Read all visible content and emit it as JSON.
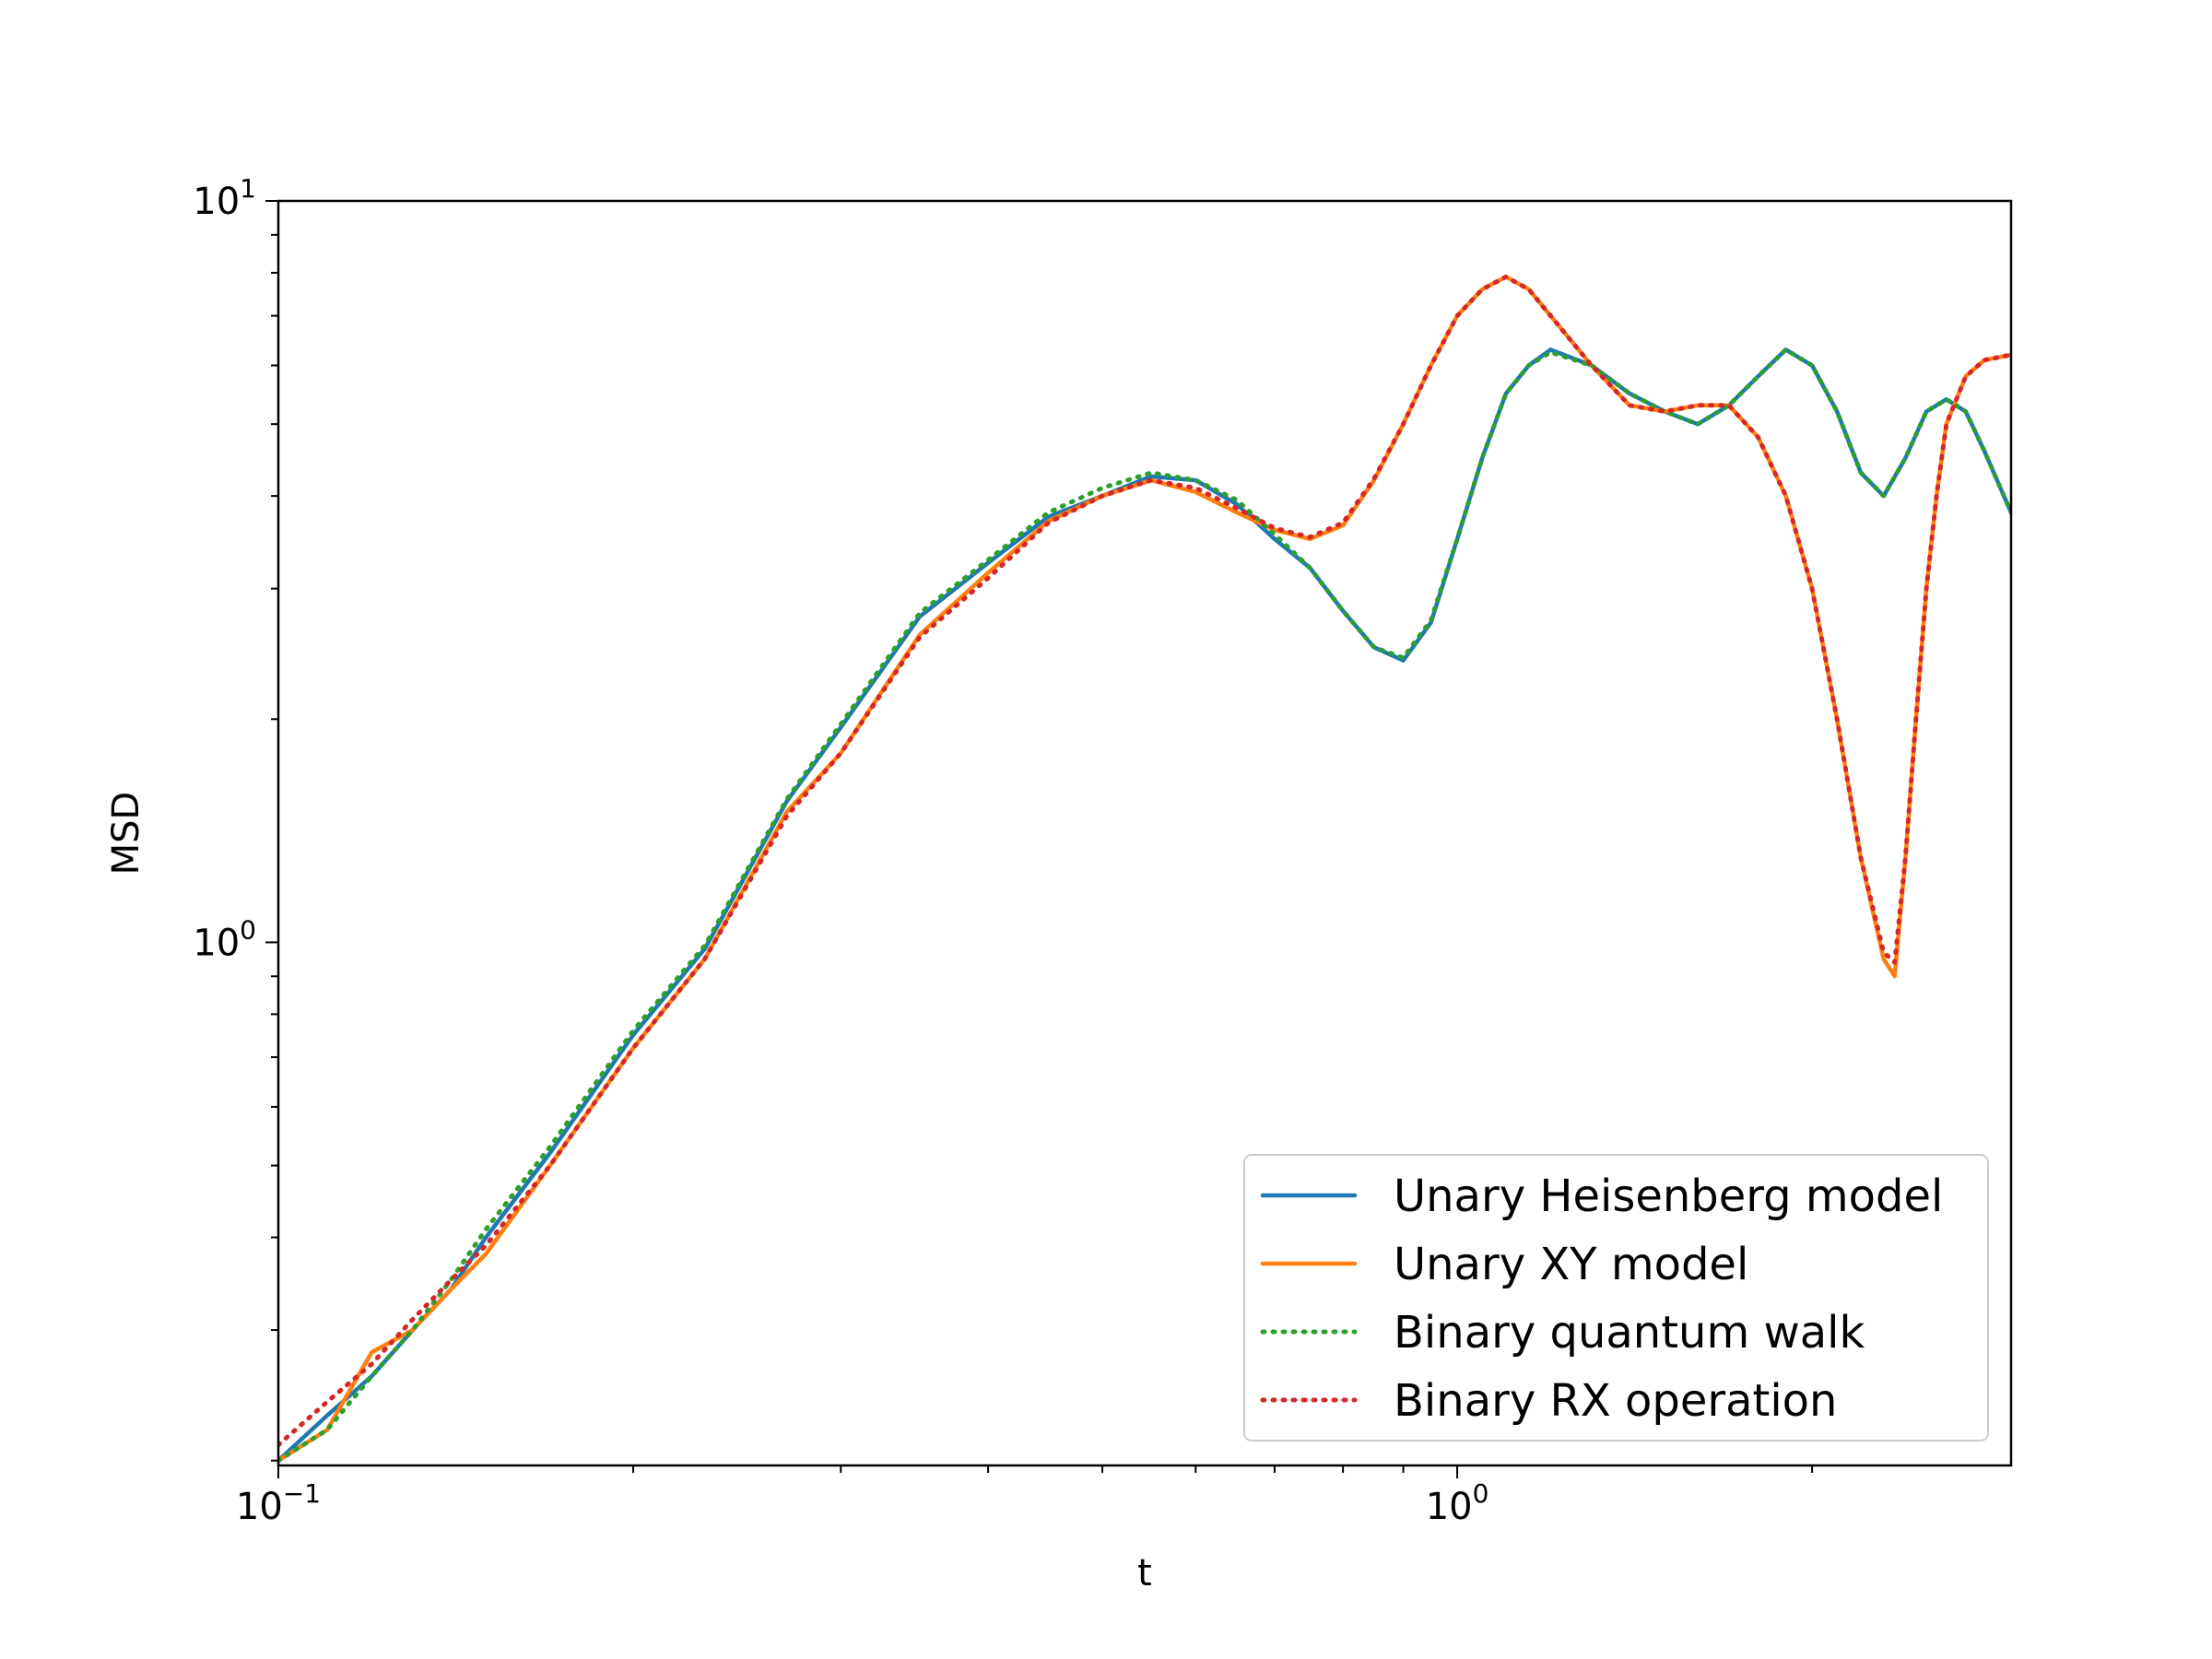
{
  "chart_data": {
    "type": "line",
    "title": "",
    "xlabel": "t",
    "ylabel": "MSD",
    "xscale": "log",
    "yscale": "log",
    "xlim": [
      0.1,
      2.95
    ],
    "ylim": [
      0.197,
      10
    ],
    "xticks": [
      {
        "value": 0.1,
        "base": "10",
        "exp": "−1"
      },
      {
        "value": 1.0,
        "base": "10",
        "exp": "0"
      }
    ],
    "yticks": [
      {
        "value": 1.0,
        "base": "10",
        "exp": "0"
      },
      {
        "value": 10.0,
        "base": "10",
        "exp": "1"
      }
    ],
    "grid": false,
    "legend_position": "lower-right",
    "series": [
      {
        "name": "Unary Heisenberg model",
        "color": "#1f77b4",
        "style": "solid",
        "x": [
          0.1,
          0.11,
          0.12,
          0.13,
          0.14,
          0.15,
          0.17,
          0.2,
          0.23,
          0.27,
          0.3,
          0.35,
          0.4,
          0.45,
          0.5,
          0.55,
          0.6,
          0.65,
          0.7,
          0.75,
          0.8,
          0.85,
          0.9,
          0.95,
          1.0,
          1.05,
          1.1,
          1.15,
          1.2,
          1.3,
          1.4,
          1.5,
          1.6,
          1.7,
          1.8,
          1.9,
          2.0,
          2.1,
          2.2,
          2.3,
          2.4,
          2.5,
          2.6,
          2.7,
          2.8,
          2.95
        ],
        "y": [
          0.2,
          0.23,
          0.26,
          0.3,
          0.34,
          0.4,
          0.52,
          0.75,
          0.98,
          1.55,
          1.95,
          2.75,
          3.25,
          3.75,
          4.0,
          4.25,
          4.2,
          3.9,
          3.5,
          3.2,
          2.8,
          2.5,
          2.4,
          2.7,
          3.5,
          4.5,
          5.5,
          6.0,
          6.3,
          6.0,
          5.5,
          5.2,
          5.0,
          5.3,
          5.8,
          6.3,
          6.0,
          5.2,
          4.3,
          4.0,
          4.5,
          5.2,
          5.4,
          5.2,
          4.6,
          3.8
        ]
      },
      {
        "name": "Unary XY model",
        "color": "#ff7f0e",
        "style": "solid",
        "x": [
          0.1,
          0.11,
          0.12,
          0.13,
          0.14,
          0.15,
          0.17,
          0.2,
          0.23,
          0.27,
          0.3,
          0.35,
          0.4,
          0.45,
          0.5,
          0.55,
          0.6,
          0.65,
          0.7,
          0.75,
          0.8,
          0.85,
          0.9,
          0.95,
          1.0,
          1.05,
          1.1,
          1.15,
          1.2,
          1.3,
          1.4,
          1.5,
          1.6,
          1.7,
          1.8,
          1.9,
          2.0,
          2.1,
          2.2,
          2.3,
          2.35,
          2.4,
          2.45,
          2.5,
          2.55,
          2.6,
          2.7,
          2.8,
          2.95
        ],
        "y": [
          0.2,
          0.22,
          0.28,
          0.3,
          0.34,
          0.38,
          0.5,
          0.72,
          0.95,
          1.5,
          1.8,
          2.6,
          3.15,
          3.7,
          4.0,
          4.2,
          4.05,
          3.8,
          3.6,
          3.5,
          3.65,
          4.2,
          5.0,
          6.0,
          7.0,
          7.6,
          7.9,
          7.6,
          7.0,
          6.0,
          5.3,
          5.2,
          5.3,
          5.3,
          4.8,
          4.0,
          3.0,
          2.0,
          1.3,
          0.95,
          0.9,
          1.3,
          2.0,
          3.0,
          4.0,
          5.0,
          5.8,
          6.1,
          6.2
        ]
      },
      {
        "name": "Binary quantum walk",
        "color": "#2ca02c",
        "style": "dotted",
        "x": [
          0.1,
          0.11,
          0.12,
          0.13,
          0.14,
          0.15,
          0.17,
          0.2,
          0.23,
          0.27,
          0.3,
          0.35,
          0.4,
          0.45,
          0.5,
          0.55,
          0.6,
          0.65,
          0.7,
          0.75,
          0.8,
          0.85,
          0.9,
          0.95,
          1.0,
          1.05,
          1.1,
          1.15,
          1.2,
          1.3,
          1.4,
          1.5,
          1.6,
          1.7,
          1.8,
          1.9,
          2.0,
          2.1,
          2.2,
          2.3,
          2.4,
          2.5,
          2.6,
          2.7,
          2.8,
          2.95
        ],
        "y": [
          0.2,
          0.22,
          0.26,
          0.3,
          0.35,
          0.41,
          0.53,
          0.76,
          0.99,
          1.56,
          1.97,
          2.78,
          3.28,
          3.8,
          4.1,
          4.3,
          4.2,
          3.95,
          3.55,
          3.2,
          2.8,
          2.5,
          2.42,
          2.72,
          3.5,
          4.5,
          5.5,
          6.0,
          6.25,
          6.0,
          5.5,
          5.2,
          5.0,
          5.3,
          5.8,
          6.3,
          6.0,
          5.2,
          4.3,
          4.0,
          4.5,
          5.2,
          5.4,
          5.2,
          4.6,
          3.8
        ]
      },
      {
        "name": "Binary RX operation",
        "color": "#d62728",
        "style": "dotted",
        "x": [
          0.1,
          0.11,
          0.12,
          0.13,
          0.14,
          0.15,
          0.17,
          0.2,
          0.23,
          0.27,
          0.3,
          0.35,
          0.4,
          0.45,
          0.5,
          0.55,
          0.6,
          0.65,
          0.7,
          0.75,
          0.8,
          0.85,
          0.9,
          0.95,
          1.0,
          1.05,
          1.1,
          1.15,
          1.2,
          1.3,
          1.4,
          1.5,
          1.6,
          1.7,
          1.8,
          1.9,
          2.0,
          2.1,
          2.2,
          2.3,
          2.35,
          2.4,
          2.45,
          2.5,
          2.55,
          2.6,
          2.7,
          2.8,
          2.95
        ],
        "y": [
          0.21,
          0.24,
          0.27,
          0.31,
          0.35,
          0.39,
          0.5,
          0.72,
          0.95,
          1.48,
          1.8,
          2.58,
          3.1,
          3.68,
          4.0,
          4.2,
          4.1,
          3.85,
          3.62,
          3.52,
          3.68,
          4.22,
          5.0,
          6.0,
          7.0,
          7.6,
          7.9,
          7.6,
          7.0,
          6.0,
          5.3,
          5.2,
          5.3,
          5.3,
          4.8,
          4.0,
          3.0,
          2.0,
          1.3,
          0.97,
          0.94,
          1.3,
          2.0,
          3.0,
          4.0,
          5.0,
          5.8,
          6.1,
          6.2
        ]
      }
    ]
  }
}
